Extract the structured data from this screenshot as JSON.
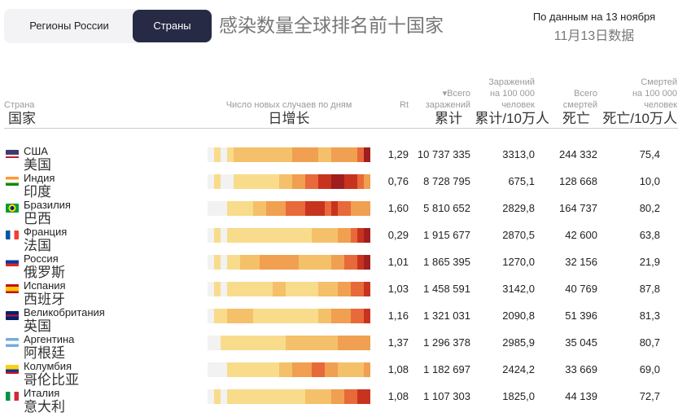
{
  "tabs": [
    {
      "label": "Регионы России",
      "active": false
    },
    {
      "label": "Страны",
      "active": true
    }
  ],
  "title": "感染数量全球排名前十国家",
  "date": {
    "ru": "По данным на 13 ноября",
    "zh": "11月13日数据"
  },
  "headers": {
    "country": {
      "ru": "Страна",
      "zh": "国家"
    },
    "daily": {
      "ru": "Число новых случаев по дням",
      "zh": "日增长"
    },
    "rt": {
      "ru": "Rt"
    },
    "total": {
      "ru1": "▾Всего",
      "ru2": "заражений",
      "zh": "累计"
    },
    "per100k": {
      "ru1": "Заражений",
      "ru2": "на 100 000",
      "ru3": "человек",
      "zh": "累计/10万人"
    },
    "deaths": {
      "ru1": "Всего",
      "ru2": "смертей",
      "zh": "死亡"
    },
    "deaths100k": {
      "ru1": "Смертей",
      "ru2": "на 100 000",
      "ru3": "человек",
      "zh": "死亡/10万人"
    }
  },
  "heat_colors": [
    "#f2f2f2",
    "#f8dc8c",
    "#f5c06a",
    "#f0a050",
    "#e8693a",
    "#c8331f",
    "#9f1f1f"
  ],
  "rows": [
    {
      "ru": "США",
      "zh": "美国",
      "flag": "us-flag",
      "rt": "1,29",
      "total": "10 737 335",
      "per100k": "3313,0",
      "deaths": "244 332",
      "deaths100k": "75,4",
      "heat": [
        0,
        1,
        0,
        1,
        2,
        2,
        2,
        2,
        2,
        2,
        2,
        2,
        2,
        3,
        3,
        3,
        3,
        2,
        2,
        3,
        3,
        3,
        3,
        4,
        6
      ]
    },
    {
      "ru": "Индия",
      "zh": "印度",
      "flag": "india-flag",
      "rt": "0,76",
      "total": "8 728 795",
      "per100k": "675,1",
      "deaths": "128 668",
      "deaths100k": "10,0",
      "heat": [
        0,
        1,
        0,
        0,
        1,
        1,
        1,
        1,
        1,
        1,
        1,
        2,
        2,
        3,
        3,
        4,
        4,
        5,
        5,
        6,
        6,
        5,
        5,
        4,
        3
      ]
    },
    {
      "ru": "Бразилия",
      "zh": "巴西",
      "flag": "brazil-flag",
      "rt": "1,60",
      "total": "5 810 652",
      "per100k": "2829,8",
      "deaths": "164 737",
      "deaths100k": "80,2",
      "heat": [
        0,
        0,
        0,
        1,
        1,
        1,
        1,
        2,
        2,
        3,
        3,
        3,
        4,
        4,
        4,
        5,
        5,
        5,
        4,
        5,
        4,
        4,
        3,
        3,
        3
      ]
    },
    {
      "ru": "Франция",
      "zh": "法国",
      "flag": "france-flag",
      "rt": "0,29",
      "total": "1 915 677",
      "per100k": "2870,5",
      "deaths": "42 600",
      "deaths100k": "63,8",
      "heat": [
        0,
        1,
        0,
        1,
        1,
        1,
        1,
        1,
        1,
        1,
        1,
        1,
        1,
        1,
        1,
        1,
        2,
        2,
        2,
        2,
        3,
        3,
        4,
        5,
        6
      ]
    },
    {
      "ru": "Россия",
      "zh": "俄罗斯",
      "flag": "russia-flag",
      "rt": "1,01",
      "total": "1 865 395",
      "per100k": "1270,0",
      "deaths": "32 156",
      "deaths100k": "21,9",
      "heat": [
        0,
        1,
        0,
        1,
        1,
        2,
        2,
        2,
        3,
        3,
        3,
        3,
        3,
        3,
        2,
        2,
        2,
        2,
        2,
        3,
        3,
        4,
        4,
        5,
        6
      ]
    },
    {
      "ru": "Испания",
      "zh": "西班牙",
      "flag": "spain-flag",
      "rt": "1,03",
      "total": "1 458 591",
      "per100k": "3142,0",
      "deaths": "40 769",
      "deaths100k": "87,8",
      "heat": [
        0,
        1,
        0,
        1,
        1,
        1,
        1,
        1,
        1,
        1,
        2,
        2,
        1,
        1,
        1,
        1,
        1,
        2,
        2,
        2,
        3,
        3,
        4,
        4,
        5
      ]
    },
    {
      "ru": "Великобритания",
      "zh": "英国",
      "flag": "uk-flag",
      "rt": "1,16",
      "total": "1 321 031",
      "per100k": "2090,8",
      "deaths": "51 396",
      "deaths100k": "81,3",
      "heat": [
        0,
        1,
        1,
        2,
        2,
        2,
        2,
        1,
        1,
        1,
        1,
        1,
        1,
        1,
        1,
        1,
        1,
        2,
        2,
        3,
        3,
        3,
        4,
        4,
        5
      ]
    },
    {
      "ru": "Аргентина",
      "zh": "阿根廷",
      "flag": "argentina-flag",
      "rt": "1,37",
      "total": "1 296 378",
      "per100k": "2985,9",
      "deaths": "35 045",
      "deaths100k": "80,7",
      "heat": [
        0,
        0,
        1,
        1,
        1,
        1,
        1,
        1,
        1,
        1,
        1,
        1,
        2,
        2,
        2,
        2,
        2,
        2,
        2,
        2,
        3,
        3,
        3,
        3,
        3
      ]
    },
    {
      "ru": "Колумбия",
      "zh": "哥伦比亚",
      "flag": "colombia-flag",
      "rt": "1,08",
      "total": "1 182 697",
      "per100k": "2424,2",
      "deaths": "33 669",
      "deaths100k": "69,0",
      "heat": [
        0,
        0,
        0,
        1,
        1,
        1,
        1,
        1,
        1,
        1,
        1,
        2,
        2,
        3,
        3,
        3,
        4,
        4,
        3,
        3,
        2,
        2,
        2,
        2,
        3
      ]
    },
    {
      "ru": "Италия",
      "zh": "意大利",
      "flag": "italy-flag",
      "rt": "1,08",
      "total": "1 107 303",
      "per100k": "1825,0",
      "deaths": "44 139",
      "deaths100k": "72,7",
      "heat": [
        0,
        1,
        0,
        1,
        1,
        1,
        1,
        1,
        1,
        1,
        1,
        1,
        1,
        1,
        1,
        2,
        2,
        2,
        2,
        3,
        3,
        4,
        4,
        5,
        5
      ]
    }
  ]
}
